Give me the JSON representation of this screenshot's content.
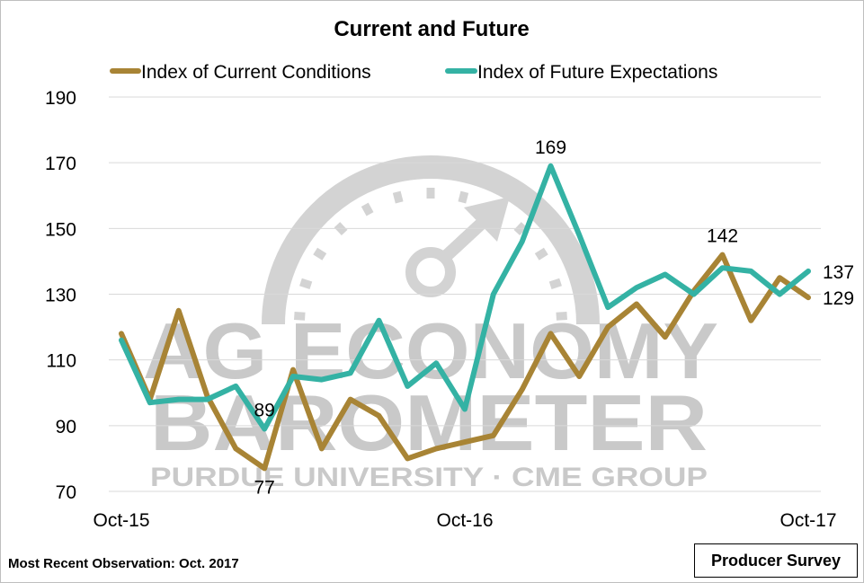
{
  "chart_data": {
    "type": "line",
    "title": "Current and Future",
    "xlabel": "",
    "ylabel": "",
    "ylim": [
      70,
      190
    ],
    "yticks": [
      70,
      90,
      110,
      130,
      150,
      170,
      190
    ],
    "grid": "horizontal",
    "legend_placement": "top",
    "x": [
      "Oct-15",
      "Nov-15",
      "Dec-15",
      "Jan-16",
      "Feb-16",
      "Mar-16",
      "Apr-16",
      "May-16",
      "Jun-16",
      "Jul-16",
      "Aug-16",
      "Sep-16",
      "Oct-16",
      "Nov-16",
      "Dec-16",
      "Jan-17",
      "Feb-17",
      "Mar-17",
      "Apr-17",
      "May-17",
      "Jun-17",
      "Jul-17",
      "Aug-17",
      "Sep-17",
      "Oct-17"
    ],
    "xtick_labels": [
      {
        "index": 0,
        "label": "Oct-15"
      },
      {
        "index": 12,
        "label": "Oct-16"
      },
      {
        "index": 24,
        "label": "Oct-17"
      }
    ],
    "series": [
      {
        "name": "Index of Current Conditions",
        "color": "#a88435",
        "values": [
          118,
          98,
          125,
          99,
          83,
          77,
          107,
          83,
          98,
          93,
          80,
          83,
          85,
          87,
          101,
          118,
          105,
          120,
          127,
          117,
          131,
          142,
          122,
          135,
          129
        ]
      },
      {
        "name": "Index of Future Expectations",
        "color": "#34b2a4",
        "values": [
          116,
          97,
          98,
          98,
          102,
          89,
          105,
          104,
          106,
          122,
          102,
          109,
          95,
          130,
          146,
          169,
          148,
          126,
          132,
          136,
          130,
          138,
          137,
          130,
          137
        ]
      }
    ],
    "data_labels": [
      {
        "series": 1,
        "index": 5,
        "text": "89",
        "position": "above"
      },
      {
        "series": 0,
        "index": 5,
        "text": "77",
        "position": "below"
      },
      {
        "series": 1,
        "index": 15,
        "text": "169",
        "position": "above"
      },
      {
        "series": 0,
        "index": 21,
        "text": "142",
        "position": "above"
      },
      {
        "series": 1,
        "index": 24,
        "text": "137",
        "position": "right"
      },
      {
        "series": 0,
        "index": 24,
        "text": "129",
        "position": "right"
      }
    ]
  },
  "watermark": {
    "line1": "AG ECONOMY",
    "line2": "BAROMETER",
    "line3": "PURDUE UNIVERSITY · CME GROUP",
    "color": "#c9c9c9"
  },
  "footnote": "Most Recent Observation: Oct. 2017",
  "badge": "Producer Survey"
}
